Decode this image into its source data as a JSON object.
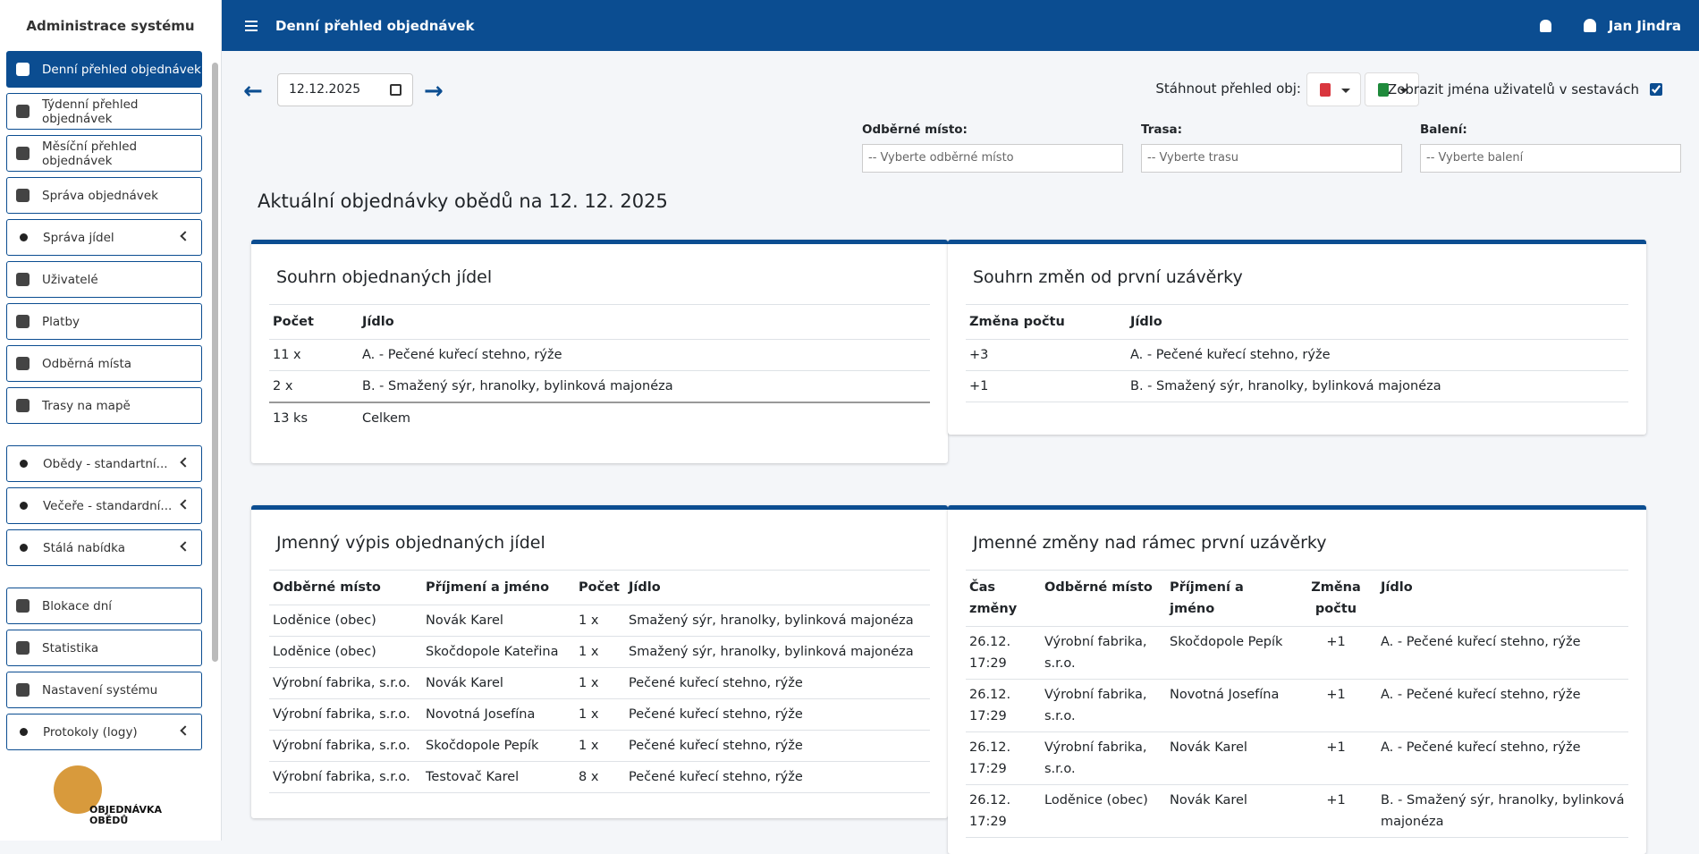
{
  "sidebar": {
    "title": "Administrace systému",
    "groups": [
      [
        {
          "label": "Denní přehled objednávek",
          "active": true
        },
        {
          "label": "Týdenní přehled objednávek"
        },
        {
          "label": "Měsíční přehled objednávek"
        },
        {
          "label": "Správa objednávek"
        },
        {
          "label": "Správa jídel",
          "submenu": true
        },
        {
          "label": "Uživatelé"
        },
        {
          "label": "Platby"
        },
        {
          "label": "Odběrná místa"
        },
        {
          "label": "Trasy na mapě"
        }
      ],
      [
        {
          "label": "Obědy - standartní...",
          "submenu": true
        },
        {
          "label": "Večeře - standardní...",
          "submenu": true
        },
        {
          "label": "Stálá nabídka",
          "submenu": true
        }
      ],
      [
        {
          "label": "Blokace dní"
        },
        {
          "label": "Statistika"
        },
        {
          "label": "Nastavení systému"
        },
        {
          "label": "Protokoly (logy)",
          "submenu": true
        }
      ]
    ],
    "logo": [
      "OBJEDNÁVKA",
      "OBĚDŮ"
    ]
  },
  "header": {
    "title": "Denní přehled objednávek",
    "user": "Jan Jindra"
  },
  "toolbar": {
    "date": "12.12.2025",
    "download_label": "Stáhnout přehled obj:",
    "show_names_label": "Zobrazit jména uživatelů v sestavách",
    "show_names": true
  },
  "filters": [
    {
      "label": "Odběrné místo:",
      "placeholder": "-- Vyberte odběrné místo"
    },
    {
      "label": "Trasa:",
      "placeholder": "-- Vyberte trasu"
    },
    {
      "label": "Balení:",
      "placeholder": "-- Vyberte balení"
    }
  ],
  "heading": "Aktuální objednávky obědů na 12. 12. 2025",
  "cards": [
    {
      "title": "Souhrn objednaných jídel",
      "columns": [
        "Počet",
        "Jídlo"
      ],
      "widths": [
        100,
        0
      ],
      "rows": [
        [
          "11 x",
          "A. - Pečené kuřecí stehno, rýže"
        ],
        [
          "2 x",
          "B. - Smažený sýr, hranolky, bylinková majonéza"
        ]
      ],
      "footer": [
        "13 ks",
        "Celkem"
      ]
    },
    {
      "title": "Souhrn změn od první uzávěrky",
      "columns": [
        "Změna počtu",
        "Jídlo"
      ],
      "widths": [
        180,
        0
      ],
      "rows": [
        [
          "+3",
          "A. - Pečené kuřecí stehno, rýže"
        ],
        [
          "+1",
          "B. - Smažený sýr, hranolky, bylinková majonéza"
        ]
      ]
    },
    {
      "title": "Jmenný výpis objednaných jídel",
      "columns": [
        "Odběrné místo",
        "Příjmení a jméno",
        "Počet",
        "Jídlo"
      ],
      "widths": [
        171,
        171,
        56,
        0
      ],
      "rows": [
        [
          "Loděnice (obec)",
          "Novák Karel",
          "1 x",
          "Smažený sýr, hranolky, bylinková majonéza"
        ],
        [
          "Loděnice (obec)",
          "Skočdopole Kateřina",
          "1 x",
          "Smažený sýr, hranolky, bylinková majonéza"
        ],
        [
          "Výrobní fabrika, s.r.o.",
          "Novák Karel",
          "1 x",
          "Pečené kuřecí stehno, rýže"
        ],
        [
          "Výrobní fabrika, s.r.o.",
          "Novotná Josefína",
          "1 x",
          "Pečené kuřecí stehno, rýže"
        ],
        [
          "Výrobní fabrika, s.r.o.",
          "Skočdopole Pepík",
          "1 x",
          "Pečené kuřecí stehno, rýže"
        ],
        [
          "Výrobní fabrika, s.r.o.",
          "Testovač Karel",
          "8 x",
          "Pečené kuřecí stehno, rýže"
        ]
      ]
    },
    {
      "title": "Jmenné změny nad rámec první uzávěrky",
      "columns": [
        "Čas změny",
        "Odběrné místo",
        "Příjmení a jméno",
        "Změna počtu",
        "Jídlo"
      ],
      "widths": [
        84,
        140,
        144,
        92,
        0
      ],
      "center": [
        3
      ],
      "rows": [
        [
          "26.12. 17:29",
          "Výrobní fabrika, s.r.o.",
          "Skočdopole Pepík",
          "+1",
          "A. - Pečené kuřecí stehno, rýže"
        ],
        [
          "26.12. 17:29",
          "Výrobní fabrika, s.r.o.",
          "Novotná Josefína",
          "+1",
          "A. - Pečené kuřecí stehno, rýže"
        ],
        [
          "26.12. 17:29",
          "Výrobní fabrika, s.r.o.",
          "Novák Karel",
          "+1",
          "A. - Pečené kuřecí stehno, rýže"
        ],
        [
          "26.12. 17:29",
          "Loděnice (obec)",
          "Novák Karel",
          "+1",
          "B. - Smažený sýr, hranolky, bylinková majonéza"
        ]
      ]
    }
  ]
}
